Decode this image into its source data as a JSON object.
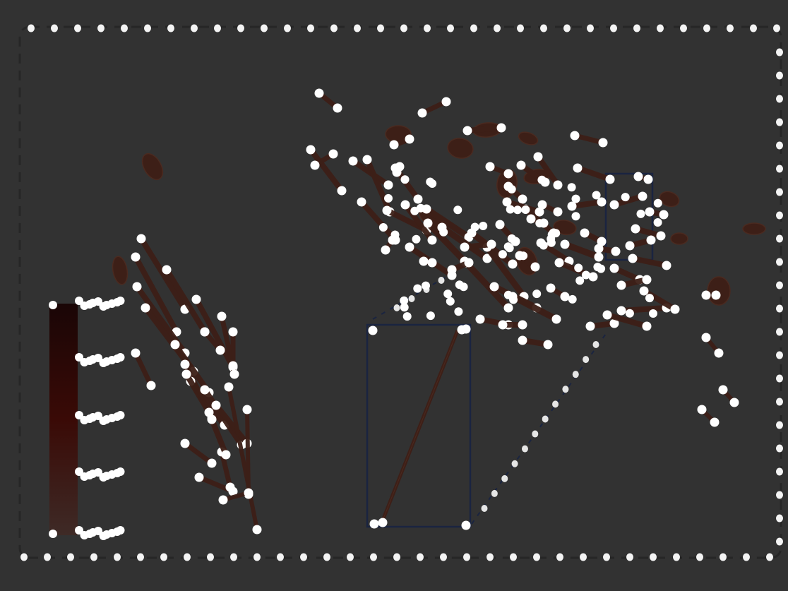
{
  "colors": {
    "background": "#323232",
    "frame_dots": "#f4f4f4",
    "frame_dash": "#262626",
    "stroke_fill": "#3d1f17",
    "stroke_outline": "#4a2a20",
    "endpoint": "#ffffff",
    "zoom_box": "#1a2440",
    "colorbar_top": "#1a0606",
    "colorbar_mid": "#3a0a06",
    "colorbar_bottom": "#3e2a26"
  },
  "elements": {
    "frame": "dotted-frame",
    "colorbar": "color-scale-bar",
    "left_cluster": "left-stroke-cluster",
    "main_cluster": "main-stroke-cluster",
    "right_cluster": "right-stroke-cluster",
    "zoom_source": "zoom-source-box",
    "zoom_inset": "zoom-inset-box"
  }
}
